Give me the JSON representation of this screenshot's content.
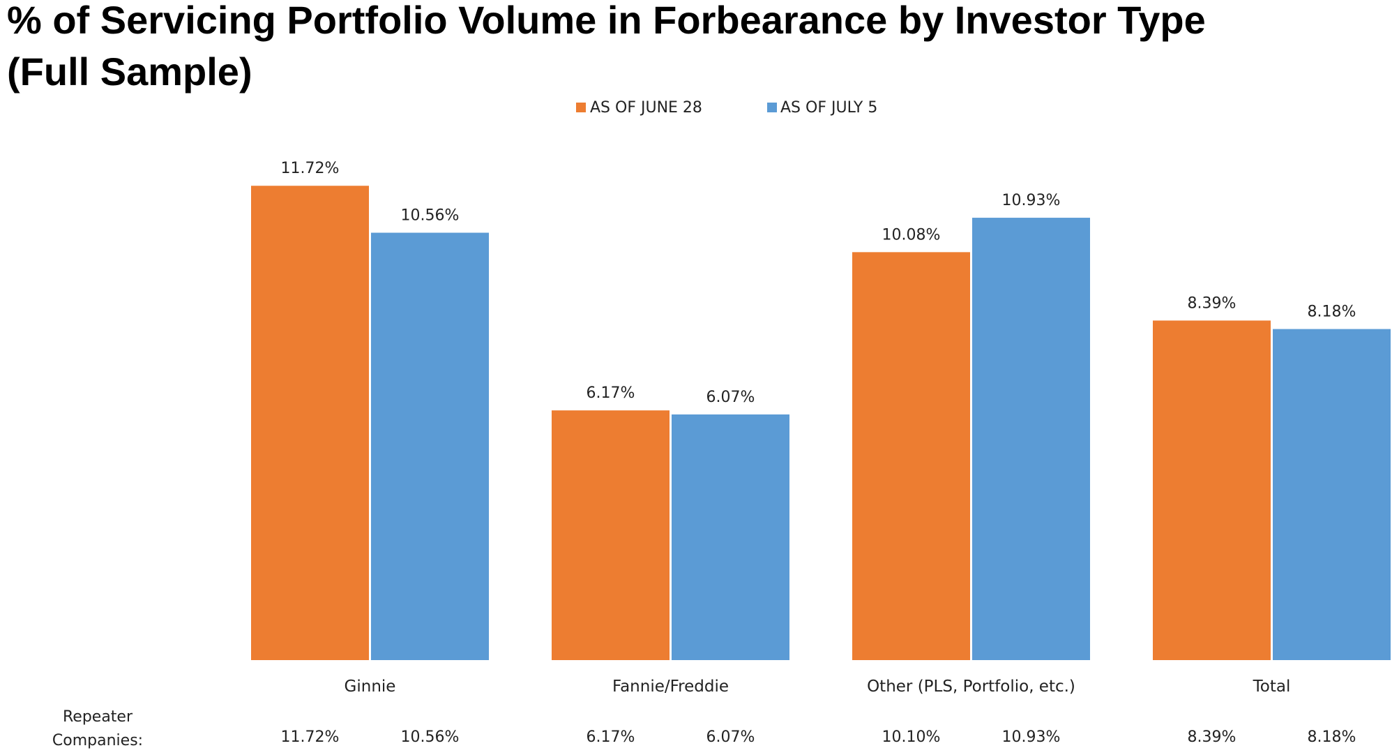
{
  "chart_data": {
    "type": "bar",
    "title": "% of Servicing Portfolio Volume in Forbearance by Investor Type",
    "subtitle": "(Full Sample)",
    "categories": [
      "Ginnie",
      "Fannie/Freddie",
      "Other (PLS, Portfolio, etc.)",
      "Total"
    ],
    "series": [
      {
        "name": "AS OF JUNE 28",
        "color": "#ED7D31",
        "values": [
          11.72,
          6.17,
          10.08,
          8.39
        ],
        "labels": [
          "11.72%",
          "6.17%",
          "10.08%",
          "8.39%"
        ]
      },
      {
        "name": "AS OF JULY 5",
        "color": "#5B9BD5",
        "values": [
          10.56,
          6.07,
          10.93,
          8.18
        ],
        "labels": [
          "10.56%",
          "6.07%",
          "10.93%",
          "8.18%"
        ]
      }
    ],
    "ylim": [
      0,
      12
    ],
    "grid": false,
    "legend_position": "top-center",
    "repeater": {
      "label_line1": "Repeater",
      "label_line2": "Companies:",
      "values": [
        [
          "11.72%",
          "10.56%"
        ],
        [
          "6.17%",
          "6.07%"
        ],
        [
          "10.10%",
          "10.93%"
        ],
        [
          "8.39%",
          "8.18%"
        ]
      ]
    }
  }
}
